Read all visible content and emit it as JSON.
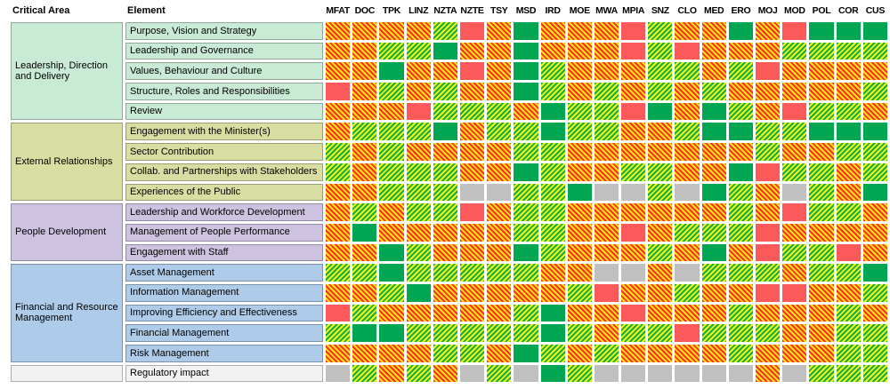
{
  "header": {
    "critical_area": "Critical Area",
    "element": "Element"
  },
  "chart_data": {
    "type": "heatmap",
    "title": "",
    "columns": [
      "MFAT",
      "DOC",
      "TPK",
      "LINZ",
      "NZTA",
      "NZTE",
      "TSY",
      "MSD",
      "IRD",
      "MOE",
      "MWA",
      "MPIA",
      "SNZ",
      "CLO",
      "MED",
      "ERO",
      "MOJ",
      "MOD",
      "POL",
      "COR",
      "CUS"
    ],
    "cell_styles": {
      "o": "hatch-orange-red-yellow-diagonal",
      "g": "hatch-green-yellow-diagonal",
      "G": "solid-green",
      "R": "solid-red",
      "X": "solid-gray"
    },
    "colors": {
      "hatch_red": "#ff2d2d",
      "hatch_yellow": "#ffe70a",
      "hatch_green": "#0fae4e",
      "solid_green": "#00a651",
      "solid_red": "#fc5a5a",
      "gray": "#c0c0c0"
    },
    "row_groups": [
      {
        "area": "Leadership, Direction and Delivery",
        "color": "#c9ead5",
        "rows": [
          {
            "element": "Purpose, Vision and Strategy",
            "ratings": [
              "o",
              "o",
              "o",
              "o",
              "g",
              "R",
              "o",
              "G",
              "o",
              "o",
              "o",
              "R",
              "g",
              "o",
              "o",
              "G",
              "o",
              "R",
              "G",
              "G",
              "G"
            ]
          },
          {
            "element": "Leadership and Governance",
            "ratings": [
              "o",
              "o",
              "g",
              "g",
              "G",
              "o",
              "o",
              "G",
              "o",
              "o",
              "o",
              "R",
              "g",
              "R",
              "o",
              "o",
              "o",
              "g",
              "g",
              "g",
              "g"
            ]
          },
          {
            "element": "Values, Behaviour and Culture",
            "ratings": [
              "o",
              "o",
              "G",
              "o",
              "o",
              "R",
              "o",
              "G",
              "g",
              "o",
              "o",
              "o",
              "g",
              "g",
              "o",
              "g",
              "R",
              "o",
              "o",
              "o",
              "o"
            ]
          },
          {
            "element": "Structure, Roles and Responsibilities",
            "ratings": [
              "R",
              "o",
              "g",
              "o",
              "g",
              "o",
              "o",
              "G",
              "g",
              "o",
              "g",
              "o",
              "g",
              "o",
              "g",
              "o",
              "o",
              "o",
              "o",
              "o",
              "g"
            ]
          },
          {
            "element": "Review",
            "ratings": [
              "o",
              "o",
              "o",
              "R",
              "g",
              "g",
              "g",
              "o",
              "G",
              "g",
              "g",
              "R",
              "G",
              "o",
              "G",
              "g",
              "o",
              "R",
              "g",
              "g",
              "o"
            ]
          }
        ]
      },
      {
        "area": "External Relationships",
        "color": "#d8dda2",
        "rows": [
          {
            "element": "Engagement with the Minister(s)",
            "ratings": [
              "o",
              "g",
              "g",
              "g",
              "G",
              "o",
              "g",
              "g",
              "G",
              "g",
              "g",
              "o",
              "o",
              "g",
              "G",
              "G",
              "g",
              "g",
              "G",
              "G",
              "G"
            ]
          },
          {
            "element": "Sector Contribution",
            "ratings": [
              "g",
              "o",
              "g",
              "o",
              "o",
              "o",
              "o",
              "g",
              "g",
              "o",
              "o",
              "o",
              "o",
              "o",
              "o",
              "o",
              "g",
              "o",
              "o",
              "g",
              "g"
            ]
          },
          {
            "element": "Collab. and Partnerships with Stakeholders",
            "ratings": [
              "g",
              "o",
              "g",
              "g",
              "g",
              "o",
              "o",
              "G",
              "g",
              "o",
              "o",
              "g",
              "g",
              "o",
              "o",
              "G",
              "R",
              "g",
              "g",
              "o",
              "g"
            ]
          },
          {
            "element": "Experiences of the Public",
            "ratings": [
              "o",
              "o",
              "g",
              "g",
              "g",
              "X",
              "X",
              "g",
              "g",
              "G",
              "X",
              "X",
              "g",
              "X",
              "G",
              "g",
              "o",
              "X",
              "g",
              "o",
              "G"
            ]
          }
        ]
      },
      {
        "area": "People Development",
        "color": "#cdc3e0",
        "rows": [
          {
            "element": "Leadership and Workforce Development",
            "ratings": [
              "o",
              "g",
              "o",
              "g",
              "g",
              "R",
              "o",
              "g",
              "g",
              "o",
              "o",
              "o",
              "o",
              "o",
              "o",
              "g",
              "o",
              "R",
              "g",
              "g",
              "o"
            ]
          },
          {
            "element": "Management of People Performance",
            "ratings": [
              "o",
              "G",
              "o",
              "o",
              "o",
              "o",
              "o",
              "g",
              "g",
              "o",
              "o",
              "R",
              "o",
              "g",
              "g",
              "g",
              "R",
              "o",
              "o",
              "o",
              "o"
            ]
          },
          {
            "element": "Engagement with Staff",
            "ratings": [
              "o",
              "o",
              "G",
              "g",
              "o",
              "o",
              "o",
              "G",
              "g",
              "o",
              "o",
              "o",
              "g",
              "o",
              "G",
              "o",
              "R",
              "g",
              "g",
              "R",
              "o"
            ]
          }
        ]
      },
      {
        "area": "Financial and Resource Management",
        "color": "#aecbe9",
        "rows": [
          {
            "element": "Asset Management",
            "ratings": [
              "g",
              "g",
              "G",
              "g",
              "g",
              "g",
              "g",
              "g",
              "o",
              "o",
              "X",
              "X",
              "o",
              "X",
              "g",
              "g",
              "g",
              "o",
              "g",
              "g",
              "G"
            ]
          },
          {
            "element": "Information Management",
            "ratings": [
              "o",
              "o",
              "g",
              "G",
              "o",
              "o",
              "o",
              "o",
              "o",
              "g",
              "R",
              "o",
              "o",
              "g",
              "o",
              "o",
              "R",
              "R",
              "o",
              "o",
              "g"
            ]
          },
          {
            "element": "Improving Efficiency and Effectiveness",
            "ratings": [
              "R",
              "g",
              "o",
              "o",
              "o",
              "o",
              "o",
              "g",
              "G",
              "o",
              "o",
              "R",
              "o",
              "o",
              "o",
              "g",
              "o",
              "o",
              "o",
              "g",
              "o"
            ]
          },
          {
            "element": "Financial Management",
            "ratings": [
              "g",
              "G",
              "G",
              "g",
              "g",
              "g",
              "g",
              "g",
              "G",
              "g",
              "o",
              "g",
              "g",
              "R",
              "g",
              "g",
              "g",
              "o",
              "o",
              "g",
              "g"
            ]
          },
          {
            "element": "Risk Management",
            "ratings": [
              "o",
              "o",
              "o",
              "o",
              "g",
              "g",
              "o",
              "G",
              "g",
              "o",
              "g",
              "o",
              "o",
              "o",
              "o",
              "g",
              "o",
              "o",
              "o",
              "g",
              "g"
            ]
          }
        ]
      },
      {
        "area": "",
        "color": "#f2f2f2",
        "rows": [
          {
            "element": "Regulatory impact",
            "ratings": [
              "X",
              "g",
              "o",
              "g",
              "o",
              "X",
              "g",
              "X",
              "G",
              "g",
              "X",
              "X",
              "X",
              "X",
              "X",
              "X",
              "o",
              "X",
              "g",
              "g",
              "g"
            ]
          }
        ]
      }
    ]
  }
}
